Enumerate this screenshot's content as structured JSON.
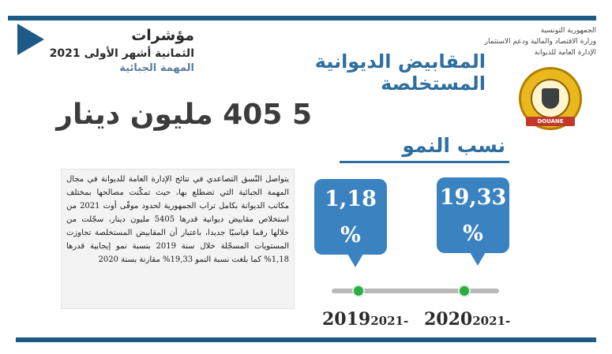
{
  "header": {
    "title": "المقابيض الديوانية المستخلصة",
    "org_lines": [
      "الجمهورية التونسية",
      "وزارة الاقتصاد والمالية ودعم الاستثمار",
      "الإدارة العامة للديوانة"
    ],
    "emblem_label": "DOUANE"
  },
  "indicators": {
    "title": "مؤشرات",
    "period": "الثمانية أشهر الأولى 2021",
    "mission": "المهمة الجبائية"
  },
  "headline": "5 405 مليون دينار",
  "growth": {
    "title": "نسب النمو",
    "items": [
      {
        "value": "1,18",
        "unit": "%",
        "period_main": "2019",
        "period_sub": "2021-"
      },
      {
        "value": "19,33",
        "unit": "%",
        "period_main": "2020",
        "period_sub": "2021-"
      }
    ]
  },
  "paragraph": "يتواصل النّسق التصاعدي في نتائج الإدارة العامة للديوانة في مجال المهمة الجبائية التي تضطلع بها، حيث تمكّنت مصالحها بمختلف مكاتب الديوانة بكامل تراب الجمهورية لحدود موفّى أوت 2021 من استخلاص مقابيض ديوانية قدرها 5405 مليون دينار، سجّلت من خلالها رقما قياسيّا جديدا، باعتبار أن المقابيض المستخلصة تجاوزت المستويات المسجّلة خلال سنة 2019 بنسبة نمو إيجابية قدرها 1,18% كما بلغت نسبة النمو 19,33% مقارنة بسنة 2020",
  "colors": {
    "frame": "#1d5a86",
    "accent": "#2f6f9f",
    "bubble": "#3b83c0",
    "dot": "#2cad43"
  }
}
